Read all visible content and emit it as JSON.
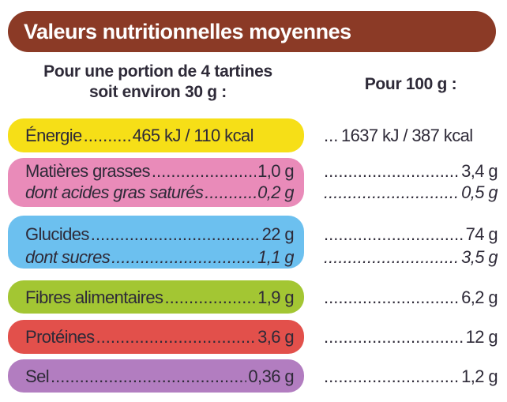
{
  "title": "Valeurs nutritionnelles moyennes",
  "portion_header": {
    "line1": "Pour une portion de 4 tartines",
    "line2": "soit environ 30 g :"
  },
  "per100_header": "Pour 100 g :",
  "colors": {
    "header": "#8b3a26",
    "energie": "#f6df17",
    "matieres_grasses": "#e98bb9",
    "glucides": "#6cc0ef",
    "fibres": "#a3c633",
    "proteines": "#e2504b",
    "sel": "#b27dc0"
  },
  "rows": [
    {
      "label": "Énergie",
      "portion": "465 kJ / 110 kcal",
      "per100": "1637 kJ / 387 kcal"
    },
    {
      "label": "Matières grasses",
      "portion": "1,0 g",
      "per100": "3,4 g"
    },
    {
      "label": "dont acides gras saturés",
      "portion": "0,2 g",
      "per100": "0,5 g"
    },
    {
      "label": "Glucides",
      "portion": "22 g",
      "per100": "74 g"
    },
    {
      "label": "dont sucres",
      "portion": "1,1 g",
      "per100": "3,5 g"
    },
    {
      "label": "Fibres alimentaires",
      "portion": "1,9 g",
      "per100": "6,2 g"
    },
    {
      "label": "Protéines",
      "portion": "3,6 g",
      "per100": "12 g"
    },
    {
      "label": "Sel",
      "portion": "0,36 g",
      "per100": "1,2 g"
    }
  ]
}
